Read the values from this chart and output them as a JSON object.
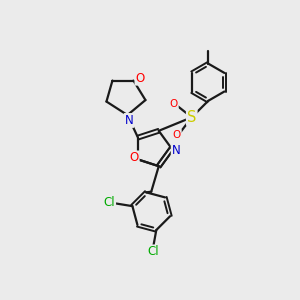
{
  "bg_color": "#ebebeb",
  "bond_color": "#1a1a1a",
  "bond_lw": 1.6,
  "atom_colors": {
    "O": "#ff0000",
    "N": "#0000cc",
    "S": "#cccc00",
    "Cl": "#00aa00",
    "C": "#1a1a1a"
  },
  "fs": 8.5,
  "fs_small": 7.5
}
